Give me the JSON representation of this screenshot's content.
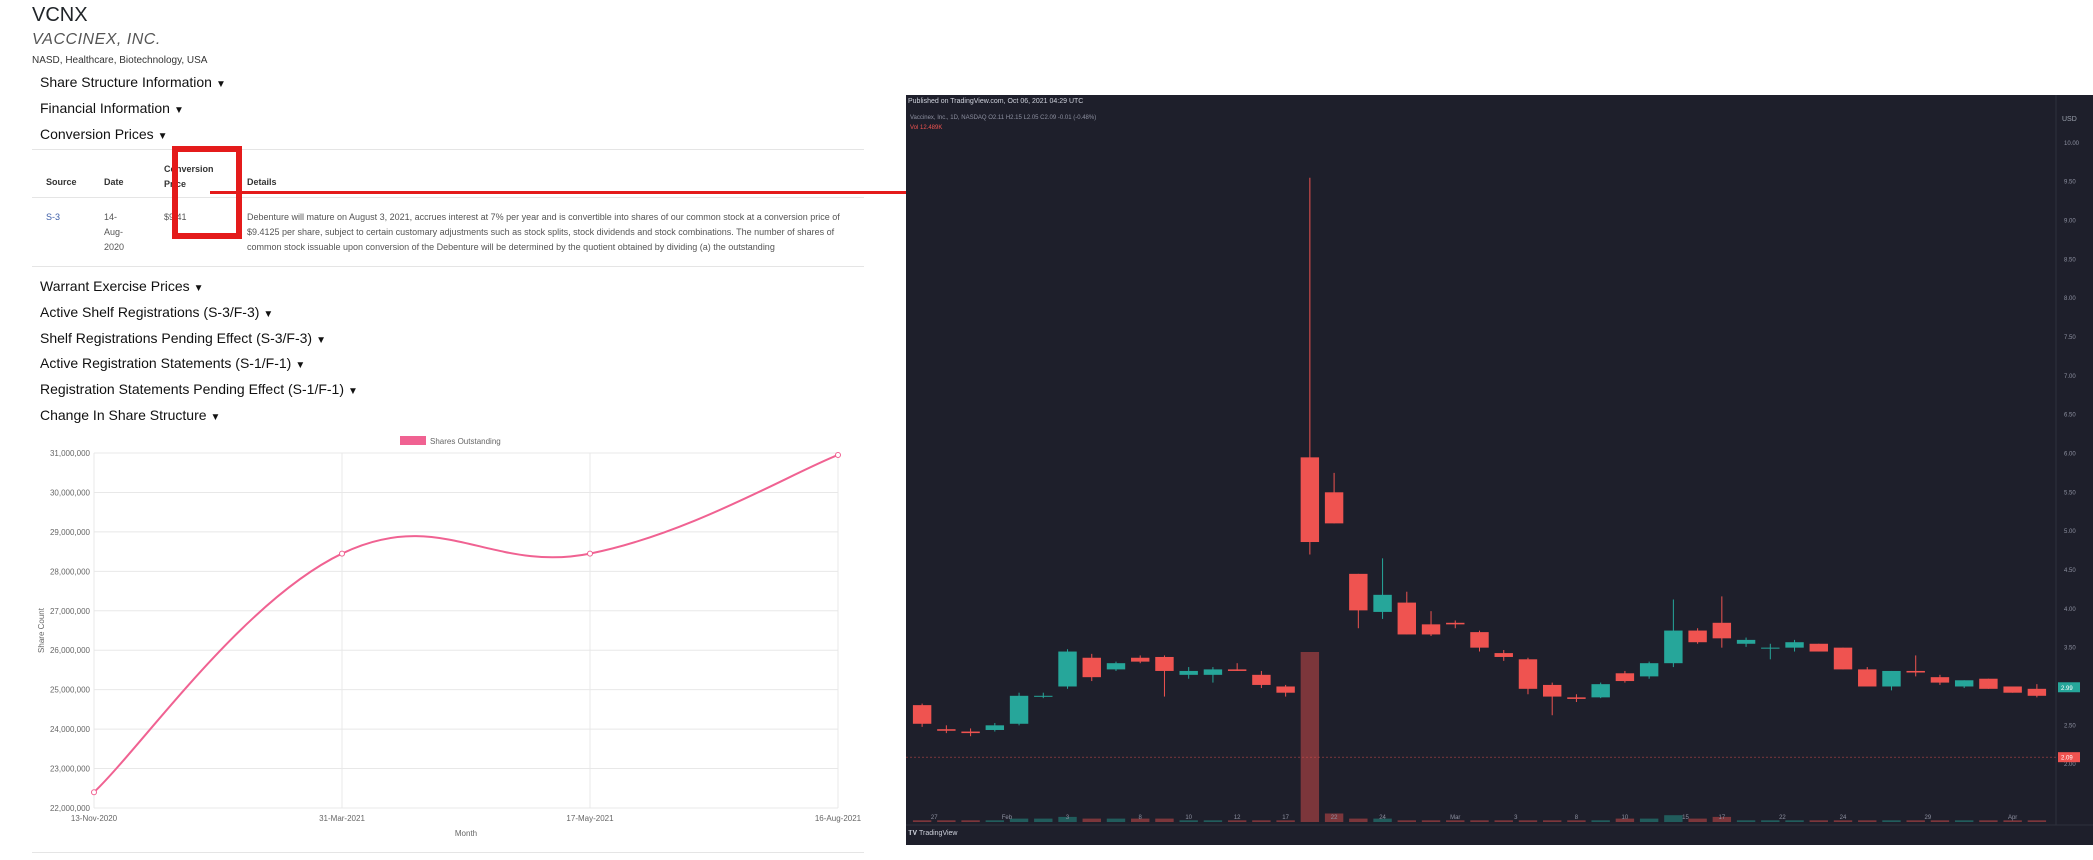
{
  "header": {
    "ticker": "VCNX",
    "company": "VACCINEX, INC.",
    "meta": "NASD, Healthcare, Biotechnology, USA"
  },
  "sections_top": [
    "Share Structure Information",
    "Financial Information",
    "Conversion Prices"
  ],
  "conversion_table": {
    "headers": {
      "source": "Source",
      "date": "Date",
      "conversion_price": "Conversion Price",
      "details": "Details"
    },
    "row": {
      "source": "S-3",
      "date": "14-Aug-2020",
      "price": "$9.41",
      "details": "Debenture will mature on August 3, 2021, accrues interest at 7% per year and is convertible into shares of our common stock at a conversion price of $9.4125 per share, subject to certain customary adjustments such as stock splits, stock dividends and stock combinations. The number of shares of common stock issuable upon conversion of the Debenture will be determined by the quotient obtained by dividing (a) the outstanding"
    }
  },
  "sections_bottom": [
    "Warrant Exercise Prices",
    "Active Shelf Registrations (S-3/F-3)",
    "Shelf Registrations Pending Effect (S-3/F-3)",
    "Active Registration Statements (S-1/F-1)",
    "Registration Statements Pending Effect (S-1/F-1)",
    "Change In Share Structure"
  ],
  "chart_data": [
    {
      "type": "line",
      "legend": "Shares Outstanding",
      "xlabel": "Month",
      "ylabel": "Share Count",
      "categories": [
        "13-Nov-2020",
        "31-Mar-2021",
        "17-May-2021",
        "16-Aug-2021"
      ],
      "values": [
        22400000,
        28450000,
        28450000,
        30950000
      ],
      "y_ticks": [
        "31,000,000",
        "30,000,000",
        "29,000,000",
        "28,000,000",
        "27,000,000",
        "26,000,000",
        "25,000,000",
        "24,000,000",
        "23,000,000",
        "22,000,000"
      ],
      "ylim": [
        22000000,
        31000000
      ],
      "color": "#f06292",
      "legend_position": "top"
    },
    {
      "type": "candlestick",
      "published": "Published on TradingView.com, Oct 06, 2021 04:29 UTC",
      "legend": "Vaccinex, Inc., 1D, NASDAQ  O2.11  H2.15  L2.05  C2.09  -0.01 (-0.48%)",
      "volume_label": "Vol  12.489K",
      "currency": "USD",
      "brand": "TradingView",
      "price_ticks": [
        "10.00",
        "9.50",
        "9.00",
        "8.50",
        "8.00",
        "7.50",
        "7.00",
        "6.50",
        "6.00",
        "5.50",
        "5.00",
        "4.50",
        "4.00",
        "3.50",
        "3.00",
        "2.50",
        "2.00"
      ],
      "last_price": "2.99",
      "ref_price": "2.09",
      "x_ticks": [
        "27",
        "Feb",
        "3",
        "8",
        "10",
        "12",
        "17",
        "22",
        "24",
        "Mar",
        "3",
        "8",
        "10",
        "15",
        "17",
        "22",
        "24",
        "29",
        "Apr"
      ],
      "ylim": [
        1.5,
        10.1
      ],
      "up_color": "#26a69a",
      "down_color": "#ef5350",
      "candles": [
        [
          2.76,
          2.78,
          2.48,
          2.52
        ],
        [
          2.45,
          2.5,
          2.4,
          2.43
        ],
        [
          2.42,
          2.46,
          2.36,
          2.4
        ],
        [
          2.44,
          2.53,
          2.42,
          2.5
        ],
        [
          2.52,
          2.92,
          2.5,
          2.88
        ],
        [
          2.88,
          2.92,
          2.85,
          2.88
        ],
        [
          3.0,
          3.48,
          2.97,
          3.45
        ],
        [
          3.37,
          3.42,
          3.07,
          3.12
        ],
        [
          3.22,
          3.32,
          3.2,
          3.3
        ],
        [
          3.37,
          3.4,
          3.3,
          3.32
        ],
        [
          3.38,
          3.4,
          2.87,
          3.2
        ],
        [
          3.15,
          3.25,
          3.1,
          3.2
        ],
        [
          3.15,
          3.25,
          3.05,
          3.22
        ],
        [
          3.22,
          3.3,
          3.2,
          3.2
        ],
        [
          3.15,
          3.2,
          2.98,
          3.02
        ],
        [
          3.0,
          3.02,
          2.87,
          2.92
        ],
        [
          5.95,
          9.55,
          4.7,
          4.86
        ],
        [
          5.5,
          5.75,
          5.1,
          5.1
        ],
        [
          4.45,
          4.45,
          3.75,
          3.98
        ],
        [
          3.96,
          4.65,
          3.87,
          4.18
        ],
        [
          4.08,
          4.22,
          3.67,
          3.67
        ],
        [
          3.8,
          3.97,
          3.65,
          3.67
        ],
        [
          3.82,
          3.85,
          3.75,
          3.8
        ],
        [
          3.7,
          3.72,
          3.45,
          3.5
        ],
        [
          3.43,
          3.47,
          3.33,
          3.38
        ],
        [
          3.35,
          3.37,
          2.9,
          2.97
        ],
        [
          3.02,
          3.05,
          2.63,
          2.87
        ],
        [
          2.86,
          2.9,
          2.8,
          2.84
        ],
        [
          2.86,
          3.05,
          2.85,
          3.03
        ],
        [
          3.17,
          3.2,
          3.05,
          3.07
        ],
        [
          3.13,
          3.32,
          3.1,
          3.3
        ],
        [
          3.3,
          4.12,
          3.25,
          3.72
        ],
        [
          3.72,
          3.75,
          3.55,
          3.57
        ],
        [
          3.82,
          4.16,
          3.5,
          3.62
        ],
        [
          3.55,
          3.63,
          3.51,
          3.6
        ],
        [
          3.5,
          3.55,
          3.35,
          3.5
        ],
        [
          3.5,
          3.6,
          3.45,
          3.57
        ],
        [
          3.55,
          3.55,
          3.45,
          3.45
        ],
        [
          3.5,
          3.5,
          3.22,
          3.22
        ],
        [
          3.22,
          3.25,
          3.0,
          3.0
        ],
        [
          3.0,
          3.2,
          2.95,
          3.2
        ],
        [
          3.2,
          3.4,
          3.13,
          3.18
        ],
        [
          3.12,
          3.15,
          3.02,
          3.05
        ],
        [
          3.0,
          3.08,
          2.98,
          3.08
        ],
        [
          3.1,
          3.1,
          2.97,
          2.97
        ],
        [
          3.0,
          3.0,
          2.92,
          2.92
        ],
        [
          2.97,
          3.03,
          2.86,
          2.88
        ]
      ],
      "volumes": [
        0.01,
        0.01,
        0.01,
        0.01,
        0.02,
        0.02,
        0.03,
        0.02,
        0.02,
        0.02,
        0.02,
        0.01,
        0.01,
        0.01,
        0.01,
        0.01,
        1.0,
        0.05,
        0.02,
        0.02,
        0.01,
        0.01,
        0.01,
        0.01,
        0.01,
        0.01,
        0.01,
        0.01,
        0.01,
        0.02,
        0.02,
        0.04,
        0.02,
        0.03,
        0.01,
        0.01,
        0.01,
        0.01,
        0.01,
        0.01,
        0.01,
        0.01,
        0.01,
        0.01,
        0.01,
        0.01,
        0.01
      ]
    }
  ]
}
